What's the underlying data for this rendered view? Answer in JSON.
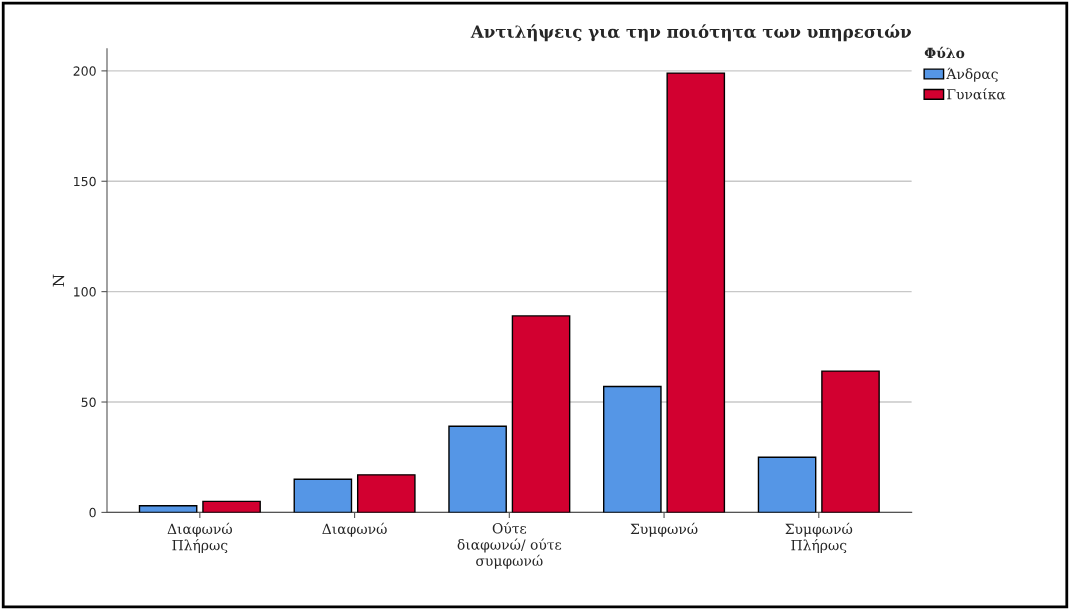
{
  "chart_data": {
    "type": "bar",
    "title": "Αντιλήψεις για την ποιότητα των υπηρεσιών",
    "ylabel": "N",
    "legend_title": "Φύλο",
    "categories": [
      "Διαφωνώ\nΠλήρως",
      "Διαφωνώ",
      "Ούτε\nδιαφωνώ/ ούτε\nσυμφωνώ",
      "Συμφωνώ",
      "Συμφωνώ\nΠλήρως"
    ],
    "series": [
      {
        "name": "Άνδρας",
        "color": "#5596e6",
        "values": [
          3,
          15,
          39,
          57,
          25
        ]
      },
      {
        "name": "Γυναίκα",
        "color": "#d20030",
        "values": [
          5,
          17,
          89,
          199,
          64
        ]
      }
    ],
    "ylim": [
      0,
      210
    ],
    "yticks": [
      0,
      50,
      100,
      150,
      200
    ],
    "grid": "y",
    "legend": "top right"
  }
}
